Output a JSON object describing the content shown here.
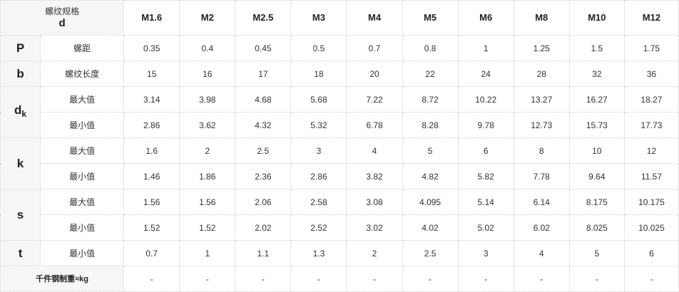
{
  "header": {
    "corner_top": "螺纹规格",
    "corner_bottom": "d",
    "sizes": [
      "M1.6",
      "M2",
      "M2.5",
      "M3",
      "M4",
      "M5",
      "M6",
      "M8",
      "M10",
      "M12"
    ]
  },
  "rows": {
    "P": {
      "symbol": "P",
      "label": "螺距",
      "values": [
        "0.35",
        "0.4",
        "0.45",
        "0.5",
        "0.7",
        "0.8",
        "1",
        "1.25",
        "1.5",
        "1.75"
      ]
    },
    "b": {
      "symbol": "b",
      "label": "螺纹长度",
      "values": [
        "15",
        "16",
        "17",
        "18",
        "20",
        "22",
        "24",
        "28",
        "32",
        "36"
      ]
    },
    "dk": {
      "symbol": "d",
      "symbol_sub": "k",
      "max": {
        "label": "最大值",
        "values": [
          "3.14",
          "3.98",
          "4.68",
          "5.68",
          "7.22",
          "8.72",
          "10.22",
          "13.27",
          "16.27",
          "18.27"
        ]
      },
      "min": {
        "label": "最小值",
        "values": [
          "2.86",
          "3.62",
          "4.32",
          "5.32",
          "6.78",
          "8.28",
          "9.78",
          "12.73",
          "15.73",
          "17.73"
        ]
      }
    },
    "k": {
      "symbol": "k",
      "max": {
        "label": "最大值",
        "values": [
          "1.6",
          "2",
          "2.5",
          "3",
          "4",
          "5",
          "6",
          "8",
          "10",
          "12"
        ]
      },
      "min": {
        "label": "最小值",
        "values": [
          "1.46",
          "1.86",
          "2.36",
          "2.86",
          "3.82",
          "4.82",
          "5.82",
          "7.78",
          "9.64",
          "11.57"
        ]
      }
    },
    "s": {
      "symbol": "s",
      "max": {
        "label": "最大值",
        "values": [
          "1.56",
          "1.56",
          "2.06",
          "2.58",
          "3.08",
          "4.095",
          "5.14",
          "6.14",
          "8.175",
          "10.175"
        ]
      },
      "min": {
        "label": "最小值",
        "values": [
          "1.52",
          "1.52",
          "2.02",
          "2.52",
          "3.02",
          "4.02",
          "5.02",
          "6.02",
          "8.025",
          "10.025"
        ]
      }
    },
    "t": {
      "symbol": "t",
      "label": "最小值",
      "values": [
        "0.7",
        "1",
        "1.1",
        "1.3",
        "2",
        "2.5",
        "3",
        "4",
        "5",
        "6"
      ]
    },
    "weight": {
      "label": "千件钢制重≈kg",
      "values": [
        "-",
        "-",
        "-",
        "-",
        "-",
        "-",
        "-",
        "-",
        "-",
        "-"
      ]
    }
  }
}
